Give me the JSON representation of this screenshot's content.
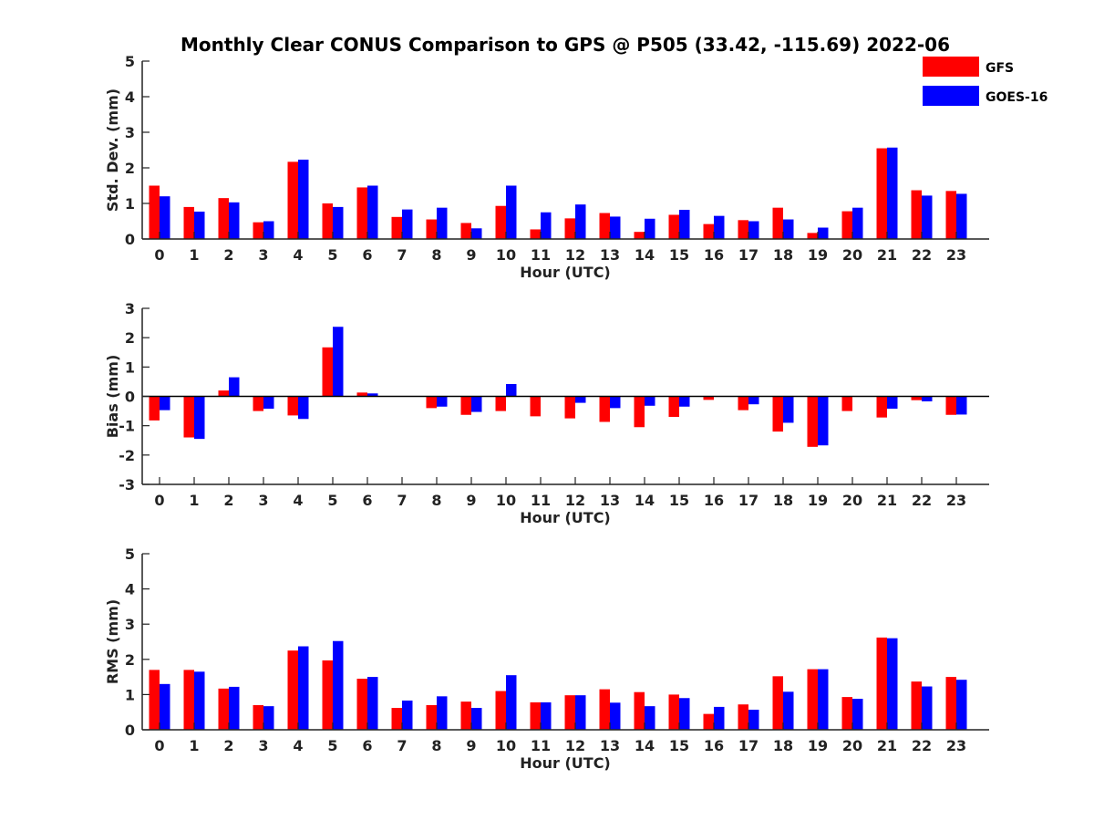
{
  "title": "Monthly Clear CONUS Comparison to GPS @ P505 (33.42, -115.69) 2022-06",
  "legend": [
    {
      "name": "GFS",
      "color": "#ff0000"
    },
    {
      "name": "GOES-16",
      "color": "#0000ff"
    }
  ],
  "chart_data": [
    {
      "type": "bar",
      "xlabel": "Hour (UTC)",
      "ylabel": "Std. Dev. (mm)",
      "ylim": [
        0,
        5
      ],
      "yticks": [
        0,
        1,
        2,
        3,
        4,
        5
      ],
      "categories": [
        "0",
        "1",
        "2",
        "3",
        "4",
        "5",
        "6",
        "7",
        "8",
        "9",
        "10",
        "11",
        "12",
        "13",
        "14",
        "15",
        "16",
        "17",
        "18",
        "19",
        "20",
        "21",
        "22",
        "23"
      ],
      "series": [
        {
          "name": "GFS",
          "color": "#ff0000",
          "values": [
            1.5,
            0.9,
            1.15,
            0.47,
            2.17,
            1.0,
            1.45,
            0.62,
            0.55,
            0.45,
            0.93,
            0.27,
            0.58,
            0.73,
            0.2,
            0.68,
            0.42,
            0.53,
            0.88,
            0.17,
            0.78,
            2.55,
            1.37,
            1.35
          ]
        },
        {
          "name": "GOES-16",
          "color": "#0000ff",
          "values": [
            1.2,
            0.77,
            1.03,
            0.5,
            2.23,
            0.9,
            1.5,
            0.83,
            0.88,
            0.3,
            1.5,
            0.75,
            0.97,
            0.63,
            0.57,
            0.82,
            0.65,
            0.5,
            0.55,
            0.32,
            0.88,
            2.57,
            1.22,
            1.27
          ]
        }
      ]
    },
    {
      "type": "bar",
      "xlabel": "Hour (UTC)",
      "ylabel": "Bias (mm)",
      "ylim": [
        -3,
        3
      ],
      "yticks": [
        -3,
        -2,
        -1,
        0,
        1,
        2,
        3
      ],
      "zero_line": true,
      "categories": [
        "0",
        "1",
        "2",
        "3",
        "4",
        "5",
        "6",
        "7",
        "8",
        "9",
        "10",
        "11",
        "12",
        "13",
        "14",
        "15",
        "16",
        "17",
        "18",
        "19",
        "20",
        "21",
        "22",
        "23"
      ],
      "series": [
        {
          "name": "GFS",
          "color": "#ff0000",
          "values": [
            -0.82,
            -1.4,
            0.2,
            -0.5,
            -0.65,
            1.67,
            0.13,
            0.0,
            -0.4,
            -0.63,
            -0.5,
            -0.68,
            -0.75,
            -0.87,
            -1.05,
            -0.7,
            -0.12,
            -0.47,
            -1.2,
            -1.72,
            -0.5,
            -0.72,
            -0.13,
            -0.63
          ]
        },
        {
          "name": "GOES-16",
          "color": "#0000ff",
          "values": [
            -0.47,
            -1.45,
            0.65,
            -0.42,
            -0.77,
            2.37,
            0.1,
            0.0,
            -0.35,
            -0.53,
            0.42,
            0.0,
            -0.22,
            -0.4,
            -0.32,
            -0.35,
            0.0,
            -0.27,
            -0.9,
            -1.67,
            0.0,
            -0.42,
            -0.17,
            -0.62
          ]
        }
      ]
    },
    {
      "type": "bar",
      "xlabel": "Hour (UTC)",
      "ylabel": "RMS (mm)",
      "ylim": [
        0,
        5
      ],
      "yticks": [
        0,
        1,
        2,
        3,
        4,
        5
      ],
      "categories": [
        "0",
        "1",
        "2",
        "3",
        "4",
        "5",
        "6",
        "7",
        "8",
        "9",
        "10",
        "11",
        "12",
        "13",
        "14",
        "15",
        "16",
        "17",
        "18",
        "19",
        "20",
        "21",
        "22",
        "23"
      ],
      "series": [
        {
          "name": "GFS",
          "color": "#ff0000",
          "values": [
            1.7,
            1.7,
            1.17,
            0.7,
            2.25,
            1.97,
            1.45,
            0.62,
            0.7,
            0.8,
            1.1,
            0.78,
            0.98,
            1.15,
            1.07,
            1.0,
            0.45,
            0.72,
            1.52,
            1.72,
            0.93,
            2.62,
            1.37,
            1.5
          ]
        },
        {
          "name": "GOES-16",
          "color": "#0000ff",
          "values": [
            1.3,
            1.65,
            1.22,
            0.67,
            2.37,
            2.52,
            1.5,
            0.83,
            0.95,
            0.62,
            1.55,
            0.78,
            0.98,
            0.77,
            0.67,
            0.9,
            0.65,
            0.57,
            1.08,
            1.72,
            0.88,
            2.6,
            1.23,
            1.42
          ]
        }
      ]
    }
  ]
}
